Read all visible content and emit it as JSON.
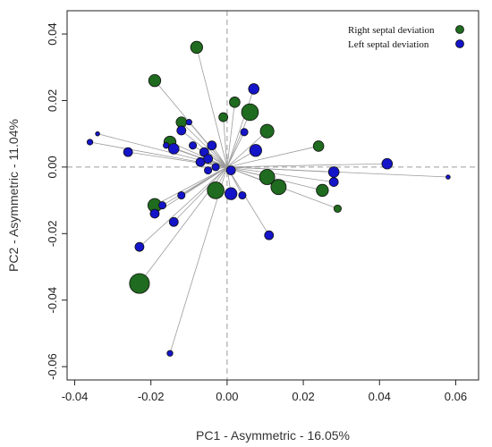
{
  "chart_data": {
    "type": "scatter",
    "xlabel": "PC1 - Asymmetric - 16.05%",
    "ylabel": "PC2 - Asymmetric - 11.04%",
    "xlim": [
      -0.042,
      0.066
    ],
    "ylim": [
      -0.064,
      0.047
    ],
    "x_ticks": [
      -0.04,
      -0.02,
      0.0,
      0.02,
      0.04,
      0.06
    ],
    "x_tick_labels": [
      "-0.04",
      "-0.02",
      "0.00",
      "0.02",
      "0.04",
      "0.06"
    ],
    "y_ticks": [
      -0.06,
      -0.04,
      -0.02,
      0.0,
      0.02,
      0.04
    ],
    "y_tick_labels": [
      "-0.06",
      "-0.04",
      "-0.02",
      "0.00",
      "0.02",
      "0.04"
    ],
    "grid": false,
    "reference_lines": {
      "x": 0,
      "y": 0,
      "style": "dashed"
    },
    "centroid": [
      0.0,
      0.0
    ],
    "legend_position": "top-right",
    "series": [
      {
        "name": "Right septal deviation",
        "color": "#1f6b1f",
        "points": [
          {
            "x": -0.008,
            "y": 0.036,
            "size": 3
          },
          {
            "x": -0.019,
            "y": 0.026,
            "size": 3
          },
          {
            "x": -0.012,
            "y": 0.0135,
            "size": 2.5
          },
          {
            "x": -0.015,
            "y": 0.0075,
            "size": 3
          },
          {
            "x": -0.019,
            "y": -0.0115,
            "size": 3.5
          },
          {
            "x": -0.023,
            "y": -0.035,
            "size": 5.5
          },
          {
            "x": -0.003,
            "y": -0.007,
            "size": 4.5
          },
          {
            "x": -0.001,
            "y": 0.015,
            "size": 2
          },
          {
            "x": 0.002,
            "y": 0.0195,
            "size": 2.5
          },
          {
            "x": 0.006,
            "y": 0.0165,
            "size": 4.5
          },
          {
            "x": 0.0105,
            "y": 0.0108,
            "size": 3.5
          },
          {
            "x": 0.0105,
            "y": -0.003,
            "size": 4
          },
          {
            "x": 0.0135,
            "y": -0.006,
            "size": 4
          },
          {
            "x": 0.024,
            "y": 0.0063,
            "size": 2.5
          },
          {
            "x": 0.025,
            "y": -0.007,
            "size": 3
          },
          {
            "x": 0.029,
            "y": -0.0125,
            "size": 1.5
          }
        ]
      },
      {
        "name": "Left septal deviation",
        "color": "#1414c8",
        "points": [
          {
            "x": -0.034,
            "y": 0.01,
            "size": 0.5
          },
          {
            "x": -0.036,
            "y": 0.0075,
            "size": 1
          },
          {
            "x": -0.026,
            "y": 0.0045,
            "size": 2
          },
          {
            "x": -0.016,
            "y": 0.0065,
            "size": 1
          },
          {
            "x": -0.014,
            "y": 0.0055,
            "size": 2.5
          },
          {
            "x": -0.012,
            "y": 0.011,
            "size": 2
          },
          {
            "x": -0.01,
            "y": 0.0135,
            "size": 1
          },
          {
            "x": -0.009,
            "y": 0.0065,
            "size": 1.5
          },
          {
            "x": -0.007,
            "y": 0.0015,
            "size": 2
          },
          {
            "x": -0.006,
            "y": 0.0045,
            "size": 2
          },
          {
            "x": -0.004,
            "y": 0.0065,
            "size": 2
          },
          {
            "x": -0.005,
            "y": 0.0025,
            "size": 2
          },
          {
            "x": -0.005,
            "y": -0.001,
            "size": 1.5
          },
          {
            "x": -0.003,
            "y": 0.0,
            "size": 1.5
          },
          {
            "x": 0.007,
            "y": 0.0235,
            "size": 2.5
          },
          {
            "x": 0.0045,
            "y": 0.0105,
            "size": 1.5
          },
          {
            "x": 0.0075,
            "y": 0.005,
            "size": 3
          },
          {
            "x": 0.001,
            "y": -0.001,
            "size": 2
          },
          {
            "x": 0.001,
            "y": -0.008,
            "size": 3
          },
          {
            "x": 0.004,
            "y": -0.0085,
            "size": 1.5
          },
          {
            "x": 0.011,
            "y": -0.0205,
            "size": 2
          },
          {
            "x": -0.012,
            "y": -0.0085,
            "size": 1.5
          },
          {
            "x": -0.014,
            "y": -0.0165,
            "size": 2
          },
          {
            "x": -0.019,
            "y": -0.014,
            "size": 2
          },
          {
            "x": -0.017,
            "y": -0.0115,
            "size": 1.5
          },
          {
            "x": -0.023,
            "y": -0.024,
            "size": 2
          },
          {
            "x": -0.015,
            "y": -0.056,
            "size": 1
          },
          {
            "x": 0.028,
            "y": -0.0015,
            "size": 2.5
          },
          {
            "x": 0.028,
            "y": -0.0045,
            "size": 2
          },
          {
            "x": 0.042,
            "y": 0.001,
            "size": 2.5
          },
          {
            "x": 0.058,
            "y": -0.003,
            "size": 0.5
          }
        ]
      }
    ]
  }
}
